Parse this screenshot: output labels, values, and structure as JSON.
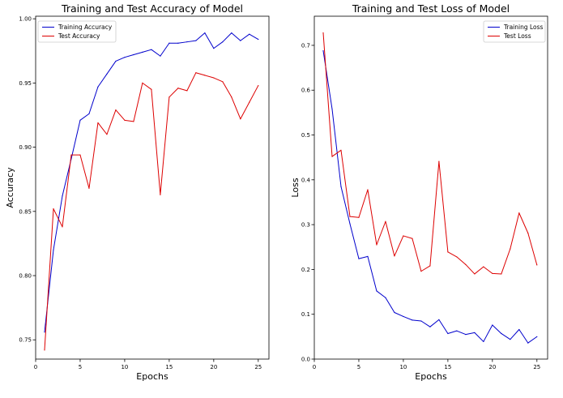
{
  "chart_data": [
    {
      "type": "line",
      "title": "Training and Test Accuracy of Model",
      "xlabel": "Epochs",
      "ylabel": "Accuracy",
      "xlim": [
        0,
        26.2
      ],
      "ylim": [
        0.735,
        1.002
      ],
      "xticks": [
        0,
        5,
        10,
        15,
        20,
        25
      ],
      "yticks": [
        0.75,
        0.8,
        0.85,
        0.9,
        0.95,
        1.0
      ],
      "ytick_labels": [
        "0.75",
        "0.80",
        "0.85",
        "0.90",
        "0.95",
        "1.00"
      ],
      "grid": false,
      "legend_position": "top-left",
      "x": [
        1,
        2,
        3,
        4,
        5,
        6,
        7,
        8,
        9,
        10,
        11,
        12,
        13,
        14,
        15,
        16,
        17,
        18,
        19,
        20,
        21,
        22,
        23,
        24,
        25
      ],
      "series": [
        {
          "name": "Training Accuracy",
          "color": "#0000cc",
          "values": [
            0.756,
            0.82,
            0.862,
            0.891,
            0.921,
            0.926,
            0.947,
            0.957,
            0.967,
            0.97,
            0.972,
            0.974,
            0.976,
            0.971,
            0.981,
            0.981,
            0.982,
            0.983,
            0.989,
            0.977,
            0.982,
            0.989,
            0.983,
            0.988,
            0.984
          ]
        },
        {
          "name": "Test Accuracy",
          "color": "#dd0000",
          "values": [
            0.742,
            0.852,
            0.838,
            0.894,
            0.894,
            0.868,
            0.919,
            0.91,
            0.929,
            0.921,
            0.92,
            0.95,
            0.945,
            0.863,
            0.939,
            0.946,
            0.944,
            0.958,
            0.956,
            0.954,
            0.951,
            0.939,
            0.922,
            0.935,
            0.948
          ]
        }
      ]
    },
    {
      "type": "line",
      "title": "Training and Test Loss of Model",
      "xlabel": "Epochs",
      "ylabel": "Loss",
      "xlim": [
        0,
        26.2
      ],
      "ylim": [
        0,
        0.765
      ],
      "xticks": [
        0,
        5,
        10,
        15,
        20,
        25
      ],
      "yticks": [
        0.0,
        0.1,
        0.2,
        0.3,
        0.4,
        0.5,
        0.6,
        0.7
      ],
      "ytick_labels": [
        "0.0",
        "0.1",
        "0.2",
        "0.3",
        "0.4",
        "0.5",
        "0.6",
        "0.7"
      ],
      "grid": false,
      "legend_position": "top-right",
      "x": [
        1,
        2,
        3,
        4,
        5,
        6,
        7,
        8,
        9,
        10,
        11,
        12,
        13,
        14,
        15,
        16,
        17,
        18,
        19,
        20,
        21,
        22,
        23,
        24,
        25
      ],
      "series": [
        {
          "name": "Training Loss",
          "color": "#0000cc",
          "values": [
            0.688,
            0.558,
            0.385,
            0.302,
            0.224,
            0.229,
            0.152,
            0.137,
            0.104,
            0.095,
            0.087,
            0.085,
            0.072,
            0.088,
            0.057,
            0.063,
            0.055,
            0.059,
            0.039,
            0.076,
            0.057,
            0.044,
            0.066,
            0.036,
            0.05
          ]
        },
        {
          "name": "Test Loss",
          "color": "#dd0000",
          "values": [
            0.728,
            0.452,
            0.466,
            0.318,
            0.316,
            0.378,
            0.255,
            0.307,
            0.23,
            0.275,
            0.269,
            0.196,
            0.208,
            0.441,
            0.239,
            0.228,
            0.211,
            0.19,
            0.206,
            0.191,
            0.19,
            0.246,
            0.326,
            0.281,
            0.21
          ]
        }
      ]
    }
  ]
}
